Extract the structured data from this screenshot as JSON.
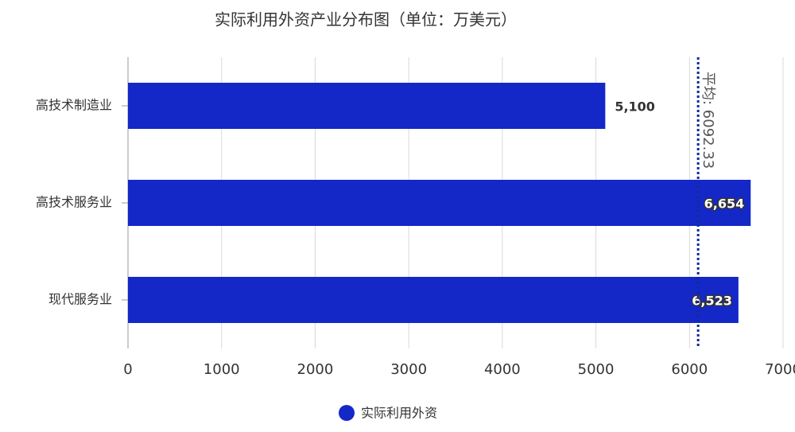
{
  "chart_data": {
    "type": "hbar",
    "title": "实际利用外资产业分布图（单位：万美元）",
    "categories": [
      "高技术制造业",
      "高技术服务业",
      "现代服务业"
    ],
    "series": [
      {
        "name": "实际利用外资",
        "color": "#1428c8",
        "values": [
          5100,
          6654,
          6523
        ],
        "value_labels": [
          "5,100",
          "6,654",
          "6,523"
        ]
      }
    ],
    "xlim": [
      0,
      7000
    ],
    "xticks": [
      0,
      1000,
      2000,
      3000,
      4000,
      5000,
      6000,
      7000
    ],
    "grid": true,
    "annotations": [
      {
        "label": "平均: 6092.33",
        "value": 6092.33
      }
    ],
    "legend": "bottom"
  }
}
